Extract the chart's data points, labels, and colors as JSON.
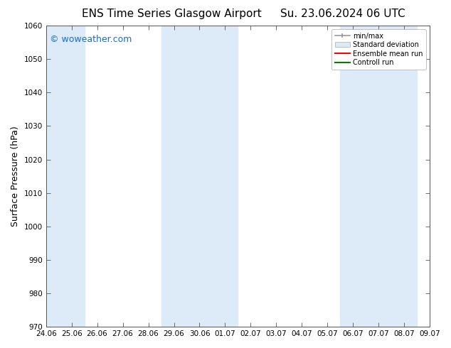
{
  "title": "ENS Time Series Glasgow Airport",
  "title2": "Su. 23.06.2024 06 UTC",
  "ylabel": "Surface Pressure (hPa)",
  "ylim": [
    970,
    1060
  ],
  "yticks": [
    970,
    980,
    990,
    1000,
    1010,
    1020,
    1030,
    1040,
    1050,
    1060
  ],
  "xtick_labels": [
    "24.06",
    "25.06",
    "26.06",
    "27.06",
    "28.06",
    "29.06",
    "30.06",
    "01.07",
    "02.07",
    "03.07",
    "04.07",
    "05.07",
    "06.07",
    "07.07",
    "08.07",
    "09.07"
  ],
  "background_color": "#ffffff",
  "plot_bg_color": "#ffffff",
  "shaded_bands": [
    {
      "xstart": 0,
      "xend": 1,
      "color": "#ddeaf7"
    },
    {
      "xstart": 5,
      "xend": 7,
      "color": "#ddeaf7"
    },
    {
      "xstart": 12,
      "xend": 14,
      "color": "#ddeaf7"
    }
  ],
  "watermark": "© woweather.com",
  "watermark_color": "#1a6fbf",
  "legend_labels": [
    "min/max",
    "Standard deviation",
    "Ensemble mean run",
    "Controll run"
  ],
  "legend_colors": [
    "#999999",
    "#cccccc",
    "#ff0000",
    "#008000"
  ],
  "title_fontsize": 11,
  "axis_label_fontsize": 9,
  "tick_fontsize": 7.5,
  "watermark_fontsize": 9
}
